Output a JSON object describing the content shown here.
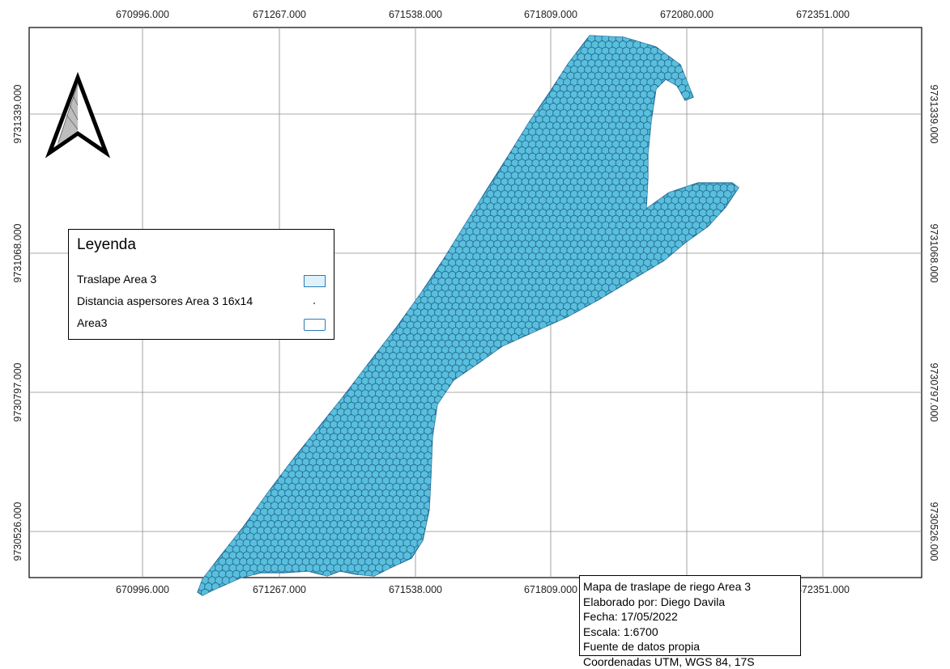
{
  "map": {
    "x_ticks": [
      "670996.000",
      "671267.000",
      "671538.000",
      "671809.000",
      "672080.000",
      "672351.000"
    ],
    "y_ticks": [
      "9731339.000",
      "9731068.000",
      "9730797.000",
      "9730526.000"
    ],
    "frame_color": "#000000",
    "grid_color": "#8c8c8c",
    "area_fill": "#4fb8d8",
    "area_stroke": "#2a6f9a"
  },
  "north_arrow": {
    "icon": "north-arrow-icon"
  },
  "legend": {
    "title": "Leyenda",
    "items": [
      {
        "label": "Traslape Area 3",
        "symbol": "fill-swatch"
      },
      {
        "label": "Distancia aspersores Area 3 16x14",
        "symbol": "point"
      },
      {
        "label": "Area3",
        "symbol": "outline-swatch"
      }
    ]
  },
  "info": {
    "title": "Mapa de traslape de riego Area 3",
    "author": "Elaborado por: Diego Davila",
    "date": "Fecha: 17/05/2022",
    "scale": "Escala: 1:6700",
    "source": "Fuente de datos propia",
    "crs": "Coordenadas UTM, WGS 84, 17S"
  }
}
